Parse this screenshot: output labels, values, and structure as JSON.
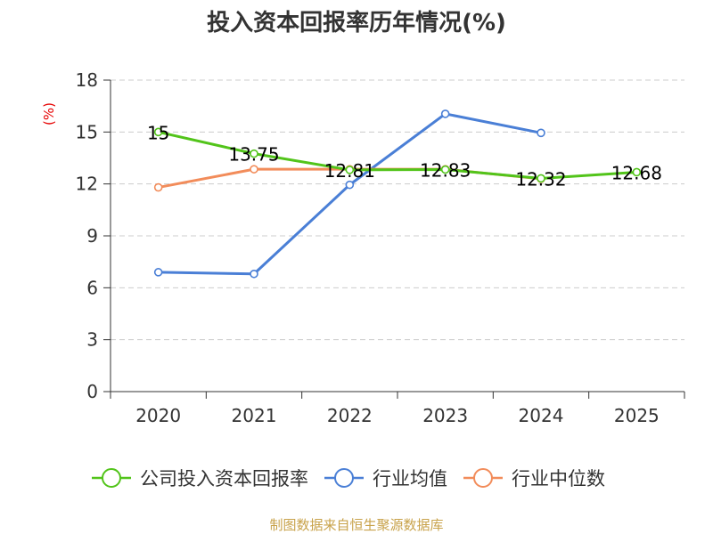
{
  "chart_data": {
    "type": "line",
    "title": "投入资本回报率历年情况(%)",
    "unit_label": "(%)",
    "xlabel": "",
    "ylabel": "",
    "categories": [
      "2020",
      "2021",
      "2022",
      "2023",
      "2024",
      "2025"
    ],
    "ylim": [
      0,
      18
    ],
    "yticks": [
      0,
      3,
      6,
      9,
      12,
      15,
      18
    ],
    "grid": true,
    "legend_position": "bottom",
    "series": [
      {
        "name": "公司投入资本回报率",
        "color": "#52c41a",
        "values": [
          15,
          13.75,
          12.81,
          12.83,
          12.32,
          12.68
        ],
        "labels": [
          "15",
          "13.75",
          "12.81",
          "12.83",
          "12.32",
          "12.68"
        ]
      },
      {
        "name": "行业均值",
        "color": "#4a7fd6",
        "values": [
          6.9,
          6.8,
          11.95,
          16.05,
          14.95,
          null
        ]
      },
      {
        "name": "行业中位数",
        "color": "#f28c5a",
        "values": [
          11.8,
          12.85,
          12.85,
          12.85,
          12.3,
          null
        ]
      }
    ]
  },
  "source": "制图数据来自恒生聚源数据库"
}
